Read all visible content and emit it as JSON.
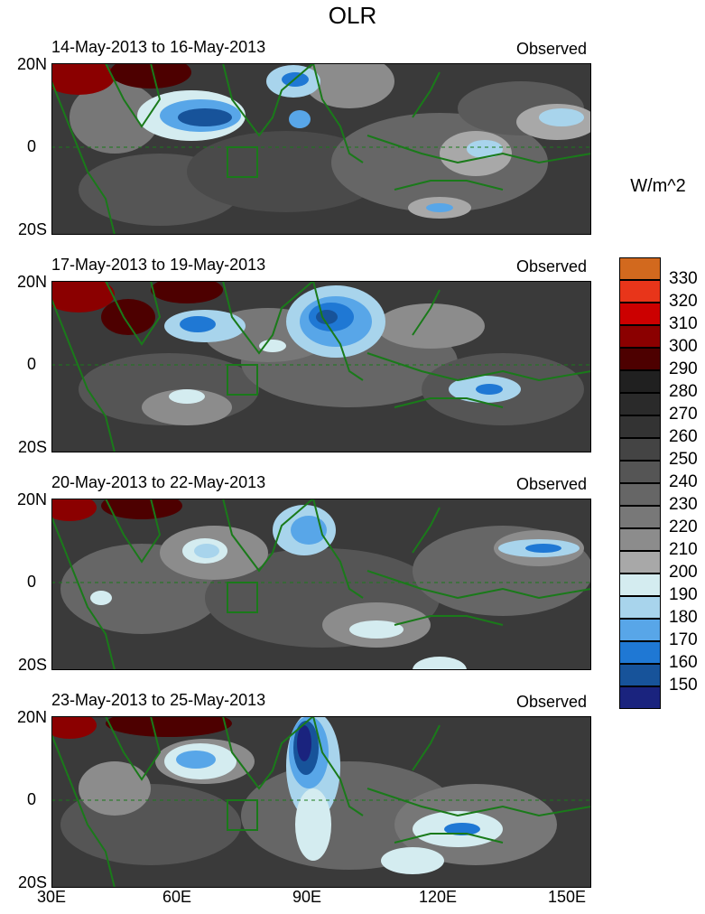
{
  "title": "OLR",
  "colorbar": {
    "units": "W/m^2",
    "levels": [
      "330",
      "320",
      "310",
      "300",
      "290",
      "280",
      "270",
      "260",
      "250",
      "240",
      "230",
      "220",
      "210",
      "200",
      "190",
      "180",
      "170",
      "160",
      "150"
    ],
    "colors": [
      "#d2691e",
      "#e8351a",
      "#cc0000",
      "#8b0000",
      "#4d0000",
      "#202020",
      "#2a2a2a",
      "#333333",
      "#444444",
      "#555555",
      "#666666",
      "#787878",
      "#8c8c8c",
      "#a8a8a8",
      "#d4ecf0",
      "#a8d4ec",
      "#58a6e8",
      "#1f78d4",
      "#17539a",
      "#1a237e"
    ]
  },
  "axes": {
    "lat_labels": [
      "20N",
      "0",
      "20S"
    ],
    "lon_labels": [
      "30E",
      "60E",
      "90E",
      "120E",
      "150E"
    ]
  },
  "panels": [
    {
      "date_range": "14-May-2013 to 16-May-2013",
      "tag": "Observed"
    },
    {
      "date_range": "17-May-2013 to 19-May-2013",
      "tag": "Observed"
    },
    {
      "date_range": "20-May-2013 to 22-May-2013",
      "tag": "Observed"
    },
    {
      "date_range": "23-May-2013 to 25-May-2013",
      "tag": "Observed"
    }
  ]
}
